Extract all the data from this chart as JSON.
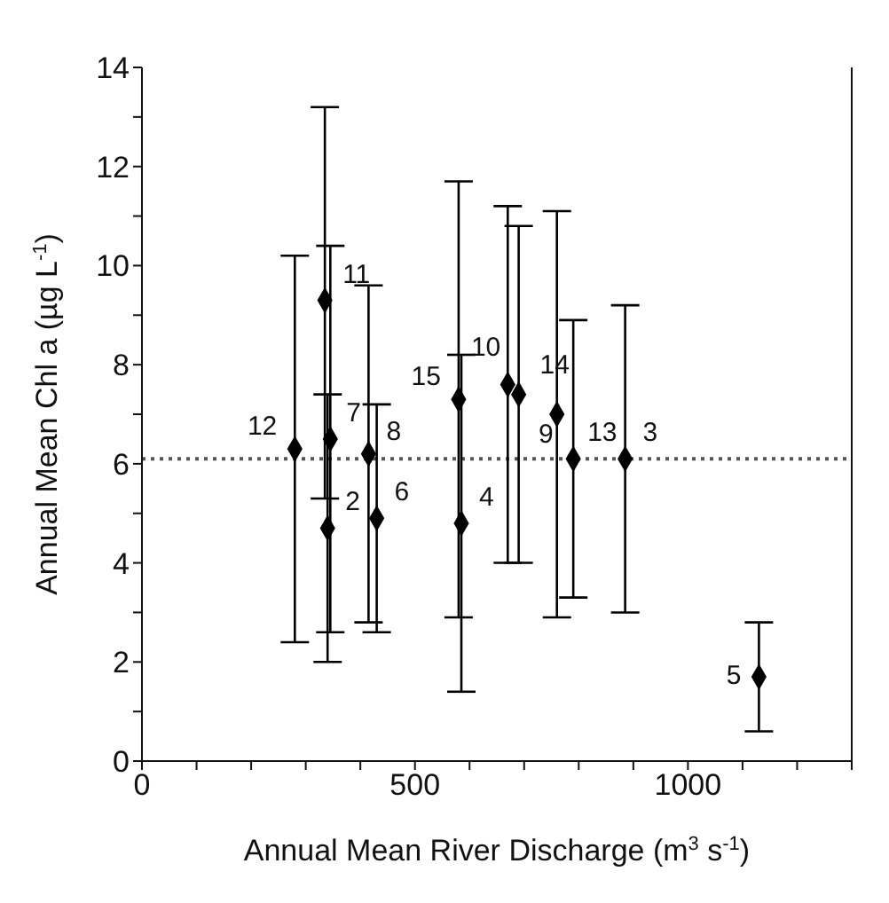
{
  "chart_data": {
    "type": "scatter",
    "xlabel": "Annual Mean River Discharge (m$^{3}$ s$^{-1}$)",
    "ylabel": "Annual Mean Chl a (µg L$^{-1}$)",
    "x": [
      280,
      335,
      345,
      340,
      415,
      430,
      580,
      585,
      670,
      690,
      760,
      790,
      885,
      1130
    ],
    "series": [
      {
        "color": "#000000",
        "values": [
          6.3,
          9.3,
          6.5,
          4.7,
          6.2,
          4.9,
          7.3,
          4.8,
          7.6,
          7.4,
          7.0,
          6.1,
          6.1,
          1.7
        ],
        "errors": [
          [
            2.4,
            10.2
          ],
          [
            5.3,
            13.2
          ],
          [
            2.6,
            10.4
          ],
          [
            2.0,
            7.4
          ],
          [
            2.8,
            9.6
          ],
          [
            2.6,
            7.2
          ],
          [
            2.9,
            11.7
          ],
          [
            1.4,
            8.2
          ],
          [
            4.0,
            11.2
          ],
          [
            4.0,
            10.8
          ],
          [
            2.9,
            11.1
          ],
          [
            3.3,
            8.9
          ],
          [
            3.0,
            9.2
          ],
          [
            0.6,
            2.8
          ]
        ]
      }
    ],
    "marker": "diamond",
    "xlim": [
      0,
      1300
    ],
    "xticks": [
      0,
      {
        "value": 100,
        "label": null
      },
      {
        "value": 200,
        "label": null
      },
      {
        "value": 300,
        "label": null
      },
      {
        "value": 400,
        "label": null
      },
      500,
      {
        "value": 600,
        "label": null
      },
      {
        "value": 700,
        "label": null
      },
      {
        "value": 800,
        "label": null
      },
      {
        "value": 900,
        "label": null
      },
      1000,
      {
        "value": 1100,
        "label": null
      },
      {
        "value": 1200,
        "label": null
      },
      {
        "value": 1300,
        "label": null
      }
    ],
    "ylim": [
      0,
      14
    ],
    "yticks": [
      0,
      {
        "value": 1,
        "label": null
      },
      2,
      {
        "value": 3,
        "label": null
      },
      4,
      {
        "value": 5,
        "label": null
      },
      6,
      {
        "value": 7,
        "label": null
      },
      8,
      {
        "value": 9,
        "label": null
      },
      10,
      {
        "value": 11,
        "label": null
      },
      12,
      {
        "value": 13,
        "label": null
      },
      14
    ],
    "ref_lines": [
      {
        "axis": "y",
        "value": 6.1,
        "line_style": "dotted",
        "color": "#555555"
      }
    ],
    "annotations": [
      {
        "text": "12",
        "x": 280,
        "y": 6.3
      },
      {
        "text": "11",
        "x": 335,
        "y": 9.3
      },
      {
        "text": "7",
        "x": 345,
        "y": 6.5
      },
      {
        "text": "2",
        "x": 340,
        "y": 4.7
      },
      {
        "text": "8",
        "x": 415,
        "y": 6.2
      },
      {
        "text": "6",
        "x": 430,
        "y": 4.9
      },
      {
        "text": "15",
        "x": 580,
        "y": 7.3
      },
      {
        "text": "4",
        "x": 585,
        "y": 4.8
      },
      {
        "text": "10",
        "x": 670,
        "y": 7.6
      },
      {
        "text": "14",
        "x": 690,
        "y": 7.4
      },
      {
        "text": "9",
        "x": 760,
        "y": 7.0
      },
      {
        "text": "13",
        "x": 790,
        "y": 6.1
      },
      {
        "text": "3",
        "x": 885,
        "y": 6.1
      },
      {
        "text": "5",
        "x": 1130,
        "y": 1.7
      }
    ]
  }
}
